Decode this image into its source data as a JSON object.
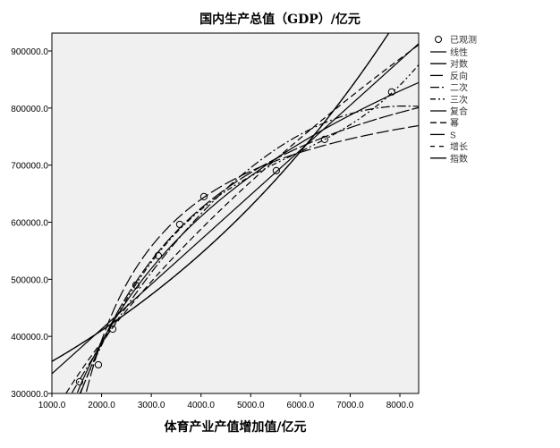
{
  "chart_data": {
    "type": "scatter",
    "title": "国内生产总值（GDP）/亿元",
    "xlabel": "体育产业产值增加值/亿元",
    "ylabel": "",
    "xlim": [
      1000,
      8380
    ],
    "ylim": [
      300000,
      931000
    ],
    "xticks": [
      1000,
      2000,
      3000,
      4000,
      5000,
      6000,
      7000,
      8000
    ],
    "xtick_labels": [
      "1000.0",
      "2000.0",
      "3000.0",
      "4000.0",
      "5000.0",
      "6000.0",
      "7000.0",
      "8000.0"
    ],
    "yticks": [
      300000,
      400000,
      500000,
      600000,
      700000,
      800000,
      900000
    ],
    "ytick_labels": [
      "300000.0",
      "400000.0",
      "500000.0",
      "600000.0",
      "700000.0",
      "800000.0",
      "900000.0"
    ],
    "grid": false,
    "legend_position": "right",
    "observed": {
      "name": "已观测",
      "x": [
        1557,
        1935,
        2223,
        2690,
        3140,
        3572,
        4058,
        5514,
        6486,
        7835
      ],
      "y": [
        320400,
        350200,
        412800,
        489700,
        541400,
        596200,
        644800,
        690300,
        745100,
        828200
      ]
    },
    "fits": [
      {
        "name": "线性",
        "model": "linear",
        "dash": ""
      },
      {
        "name": "对数",
        "model": "log",
        "dash": ""
      },
      {
        "name": "反向",
        "model": "inverse",
        "dash": "14,4"
      },
      {
        "name": "二次",
        "model": "quadratic",
        "dash": "10,3,2,3"
      },
      {
        "name": "三次",
        "model": "cubic",
        "dash": "6,3,2,3,2,3"
      },
      {
        "name": "复合",
        "model": "compound",
        "dash": ""
      },
      {
        "name": "幂",
        "model": "power",
        "dash": "7,4"
      },
      {
        "name": "S",
        "model": "s",
        "dash": "16,3"
      },
      {
        "name": "增长",
        "model": "growth",
        "dash": "5,5"
      },
      {
        "name": "指数",
        "model": "exponential",
        "dash": ""
      }
    ]
  }
}
